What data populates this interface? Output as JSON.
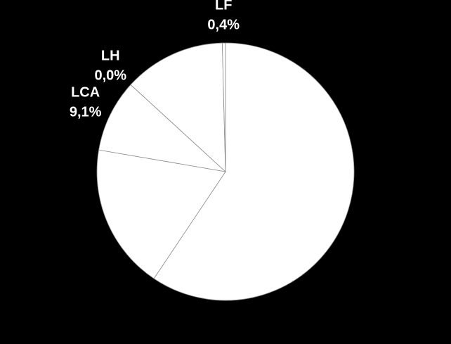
{
  "chart_data": {
    "type": "pie",
    "categories": [
      null,
      null,
      "LCA",
      "LH",
      null,
      "LF"
    ],
    "values": [
      59.4,
      18.3,
      9.1,
      0.0,
      12.8,
      0.4
    ],
    "value_labels": [
      null,
      null,
      "9,1%",
      "0,0%",
      null,
      "0,4%"
    ],
    "color": "#ffffff"
  }
}
